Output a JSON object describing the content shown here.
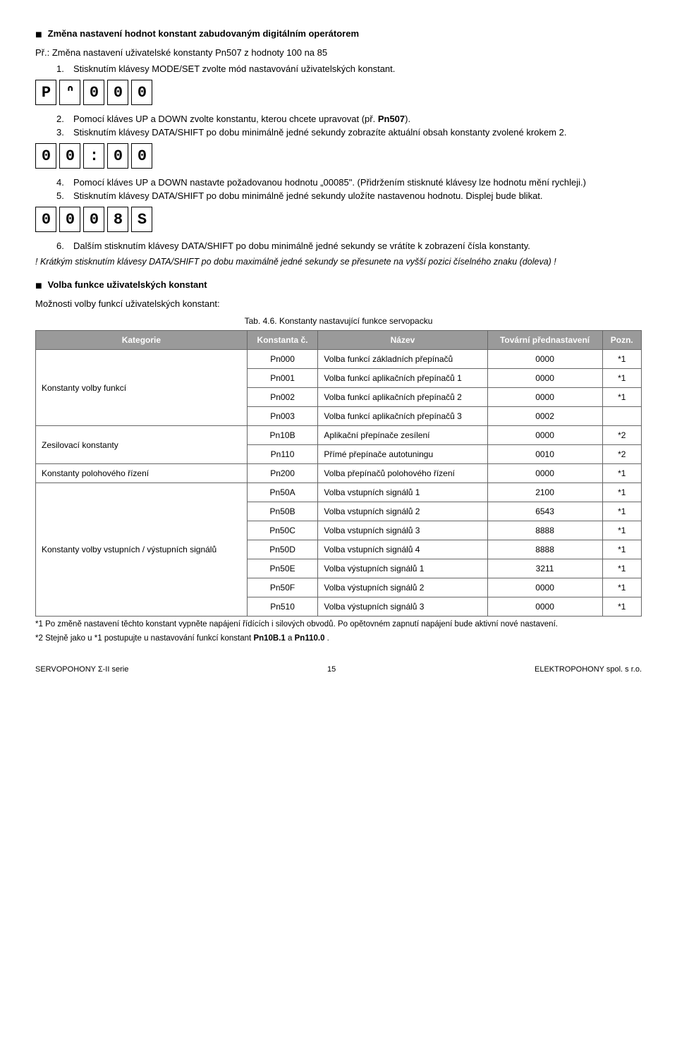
{
  "heading1": "Změna nastavení hodnot konstant zabudovaným digitálním operátorem",
  "example_label": "Př.:",
  "example_text": " Změna nastavení uživatelské konstanty Pn507 z hodnoty 100 na 85",
  "step1_n": "1.",
  "step1_t": "Stisknutím klávesy MODE/SET zvolte mód nastavování uživatelských konstant.",
  "disp1": [
    "P",
    "ᐢ",
    "0",
    "0",
    "0"
  ],
  "step2_n": "2.",
  "step2_t_a": "Pomocí kláves UP a DOWN zvolte konstantu, kterou chcete upravovat (př. ",
  "step2_t_b": "Pn507",
  "step2_t_c": ").",
  "step3_n": "3.",
  "step3_t": "Stisknutím klávesy DATA/SHIFT po dobu minimálně jedné sekundy zobrazíte aktuální obsah konstanty zvolené krokem 2.",
  "disp2": [
    "0",
    "0",
    ":",
    "0",
    "0"
  ],
  "step4_n": "4.",
  "step4_t": "Pomocí kláves UP a DOWN nastavte požadovanou hodnotu „00085\". (Přidržením stisknuté klávesy lze hodnotu mění rychleji.)",
  "step5_n": "5.",
  "step5_t": "Stisknutím klávesy DATA/SHIFT po dobu minimálně jedné sekundy uložíte nastavenou hodnotu. Displej bude blikat.",
  "disp3": [
    "0",
    "0",
    "0",
    "8",
    "S"
  ],
  "step6_n": "6.",
  "step6_t": "Dalším stisknutím klávesy DATA/SHIFT po dobu minimálně jedné sekundy se vrátíte k zobrazení čísla konstanty.",
  "italic_note": "! Krátkým stisknutím klávesy DATA/SHIFT po dobu maximálně jedné sekundy se přesunete na vyšší pozici číselného znaku (doleva) !",
  "heading2": "Volba funkce uživatelských konstant",
  "sub2": "Možnosti volby funkcí uživatelských konstant:",
  "tab_caption": "Tab. 4.6. Konstanty nastavující funkce servopacku",
  "th_cat": "Kategorie",
  "th_num": "Konstanta č.",
  "th_name": "Název",
  "th_def": "Tovární přednastavení",
  "th_note": "Pozn.",
  "groups": [
    {
      "cat": "Konstanty volby funkcí",
      "rows": [
        {
          "c": "Pn000",
          "n": "Volba funkcí základních přepínačů",
          "d": "0000",
          "p": "*1"
        },
        {
          "c": "Pn001",
          "n": "Volba funkcí aplikačních přepínačů 1",
          "d": "0000",
          "p": "*1"
        },
        {
          "c": "Pn002",
          "n": "Volba funkcí aplikačních přepínačů 2",
          "d": "0000",
          "p": "*1"
        },
        {
          "c": "Pn003",
          "n": "Volba funkcí aplikačních přepínačů 3",
          "d": "0002",
          "p": ""
        }
      ]
    },
    {
      "cat": "Zesilovací konstanty",
      "rows": [
        {
          "c": "Pn10B",
          "n": "Aplikační přepínače zesílení",
          "d": "0000",
          "p": "*2"
        },
        {
          "c": "Pn110",
          "n": "Přímé přepínače autotuningu",
          "d": "0010",
          "p": "*2"
        }
      ]
    },
    {
      "cat": "Konstanty polohového řízení",
      "rows": [
        {
          "c": "Pn200",
          "n": "Volba přepínačů polohového řízení",
          "d": "0000",
          "p": "*1"
        }
      ]
    },
    {
      "cat": "Konstanty volby vstupních / výstupních signálů",
      "rows": [
        {
          "c": "Pn50A",
          "n": "Volba vstupních signálů 1",
          "d": "2100",
          "p": "*1"
        },
        {
          "c": "Pn50B",
          "n": "Volba vstupních signálů 2",
          "d": "6543",
          "p": "*1"
        },
        {
          "c": "Pn50C",
          "n": "Volba vstupních signálů 3",
          "d": "8888",
          "p": "*1"
        },
        {
          "c": "Pn50D",
          "n": "Volba vstupních signálů 4",
          "d": "8888",
          "p": "*1"
        },
        {
          "c": "Pn50E",
          "n": "Volba výstupních signálů 1",
          "d": "3211",
          "p": "*1"
        },
        {
          "c": "Pn50F",
          "n": "Volba výstupních signálů 2",
          "d": "0000",
          "p": "*1"
        },
        {
          "c": "Pn510",
          "n": "Volba výstupních signálů 3",
          "d": "0000",
          "p": "*1"
        }
      ]
    }
  ],
  "tfoot1": "*1 Po změně nastavení těchto konstant vypněte napájení řídících i silových obvodů. Po opětovném zapnutí napájení bude aktivní nové nastavení.",
  "tfoot2_a": "*2 Stejně jako u *1 postupujte u nastavování funkcí konstant ",
  "tfoot2_b": "Pn10B.1",
  "tfoot2_c": " a ",
  "tfoot2_d": "Pn110.0",
  "tfoot2_e": " .",
  "foot_left": "SERVOPOHONY Σ-II serie",
  "foot_mid": "15",
  "foot_right": "ELEKTROPOHONY spol. s r.o."
}
